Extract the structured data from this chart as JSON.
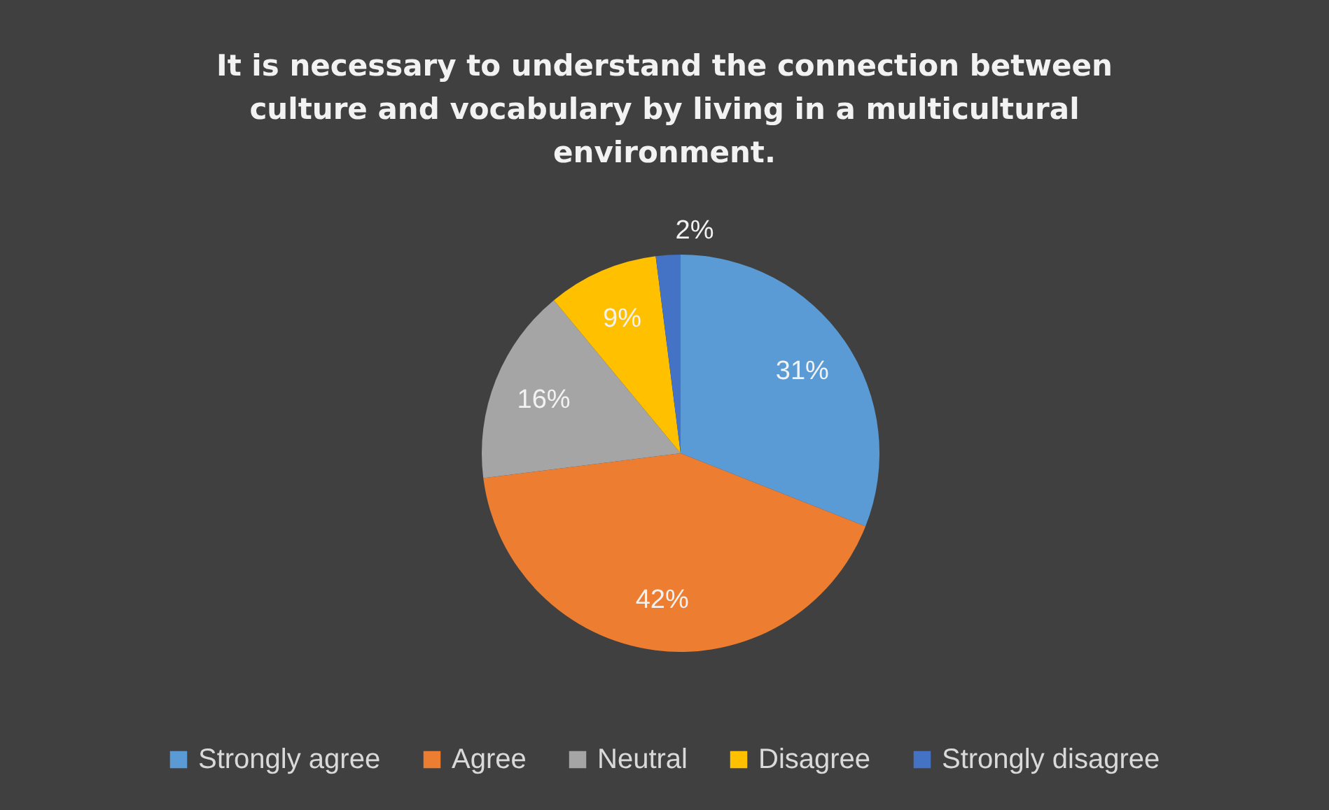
{
  "chart_data": {
    "type": "pie",
    "title": "It is necessary to understand the connection between culture and vocabulary by living in a multicultural environment.",
    "categories": [
      "Strongly agree",
      "Agree",
      "Neutral",
      "Disagree",
      "Strongly disagree"
    ],
    "values": [
      31,
      42,
      16,
      9,
      2
    ],
    "colors": [
      "#5b9bd5",
      "#ed7d31",
      "#a5a5a5",
      "#ffc000",
      "#4472c4"
    ],
    "value_labels": [
      "31%",
      "42%",
      "16%",
      "9%",
      "2%"
    ],
    "legend": "bottom"
  }
}
